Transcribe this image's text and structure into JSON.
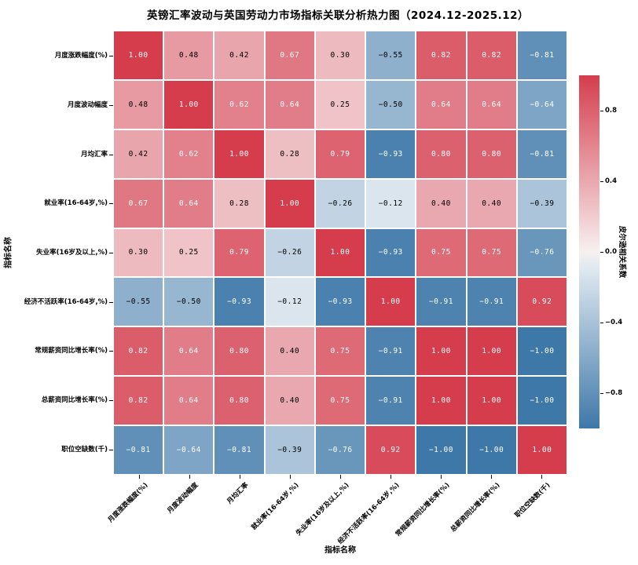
{
  "chart_data": {
    "type": "heatmap",
    "title": "英镑汇率波动与英国劳动力市场指标关联分析热力图（2024.12-2025.12）",
    "xlabel": "指标名称",
    "ylabel": "指标名称",
    "categories": [
      "月度涨跌幅度(%)",
      "月度波动幅度",
      "月均汇率",
      "就业率(16-64岁,%)",
      "失业率(16岁及以上,%)",
      "经济不活跃率(16-64岁,%)",
      "常规薪资同比增长率(%)",
      "总薪资同比增长率(%)",
      "职位空缺数(千)"
    ],
    "matrix": [
      [
        1.0,
        0.48,
        0.42,
        0.67,
        0.3,
        -0.55,
        0.82,
        0.82,
        -0.81
      ],
      [
        0.48,
        1.0,
        0.62,
        0.64,
        0.25,
        -0.5,
        0.64,
        0.64,
        -0.64
      ],
      [
        0.42,
        0.62,
        1.0,
        0.28,
        0.79,
        -0.93,
        0.8,
        0.8,
        -0.81
      ],
      [
        0.67,
        0.64,
        0.28,
        1.0,
        -0.26,
        -0.12,
        0.4,
        0.4,
        -0.39
      ],
      [
        0.3,
        0.25,
        0.79,
        -0.26,
        1.0,
        -0.93,
        0.75,
        0.75,
        -0.76
      ],
      [
        -0.55,
        -0.5,
        -0.93,
        -0.12,
        -0.93,
        1.0,
        -0.91,
        -0.91,
        0.92
      ],
      [
        0.82,
        0.64,
        0.8,
        0.4,
        0.75,
        -0.91,
        1.0,
        1.0,
        -1.0
      ],
      [
        0.82,
        0.64,
        0.8,
        0.4,
        0.75,
        -0.91,
        1.0,
        1.0,
        -1.0
      ],
      [
        -0.81,
        -0.64,
        -0.81,
        -0.39,
        -0.76,
        0.92,
        -1.0,
        -1.0,
        1.0
      ]
    ],
    "vmin": -1.0,
    "vmax": 1.0,
    "colorbar": {
      "label": "皮尔逊相关系数",
      "ticks": [
        0.8,
        0.4,
        0.0,
        -0.4,
        -0.8
      ]
    },
    "palette": {
      "positive_max": "#d53d4d",
      "positive_center": "#f7f0f0",
      "negative_center": "#f0f4f8",
      "negative_max": "#3e78a8",
      "gridline": "#ffffff",
      "annot_dark": "#000000",
      "annot_light": "#ffffff"
    }
  }
}
